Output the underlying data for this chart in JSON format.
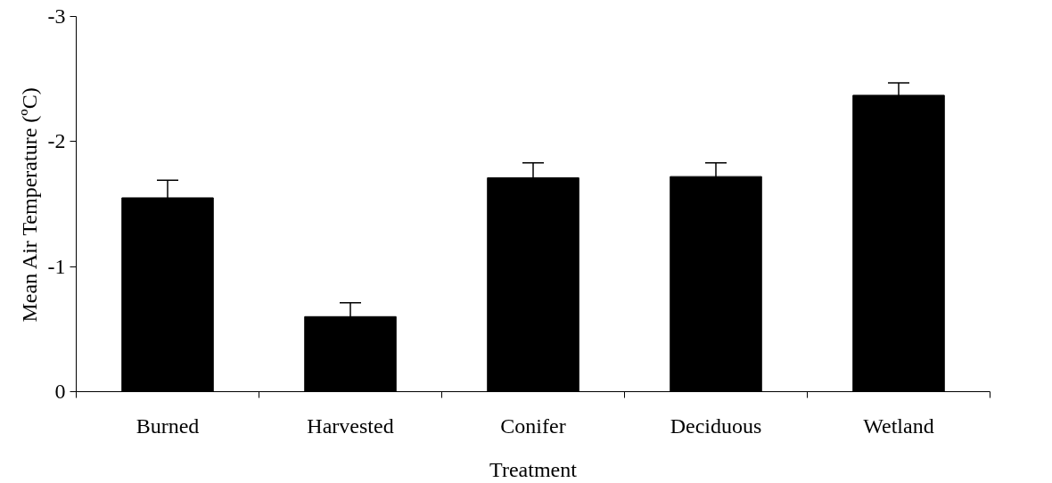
{
  "chart_data": {
    "type": "bar",
    "xlabel": "Treatment",
    "ylabel": "Mean Air Temperature (ºC)",
    "categories": [
      "Burned",
      "Harvested",
      "Conifer",
      "Deciduous",
      "Wetland"
    ],
    "values": [
      -1.55,
      -0.6,
      -1.71,
      -1.72,
      -2.37
    ],
    "errors": [
      0.14,
      0.11,
      0.12,
      0.11,
      0.1
    ],
    "color": "#000000",
    "ylim": [
      0,
      -3
    ],
    "yticks": [
      0,
      -1,
      -2,
      -3
    ],
    "grid": false
  }
}
